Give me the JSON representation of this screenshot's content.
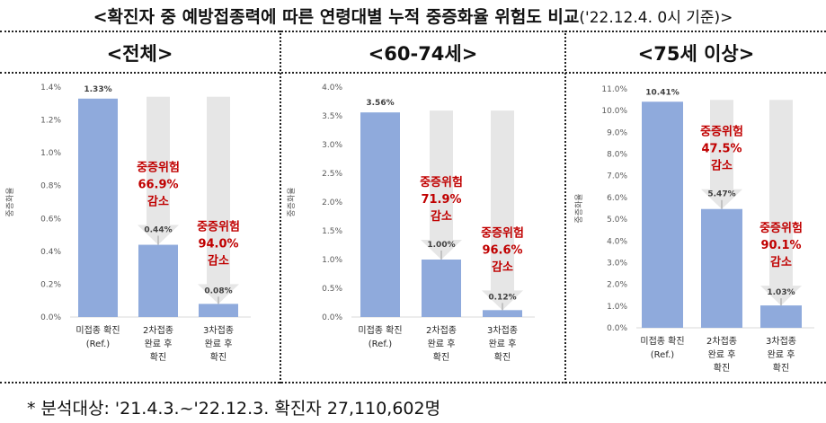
{
  "title": {
    "main": "<확진자 중 예방접종력에 따른 연령대별 누적 중증화율 위험도 비교",
    "sub": "('22.12.4. 0시 기준)>"
  },
  "footnote": "* 분석대상: '21.4.3.~'22.12.3. 확진자 27,110,602명",
  "colors": {
    "bar": "#8faadc",
    "arrow": "#e6e6e6",
    "annotation": "#c00000"
  },
  "chart_data": [
    {
      "type": "bar",
      "title": "<전체>",
      "ylabel": "중증화율",
      "categories": [
        [
          "미접종 확진",
          "(Ref.)"
        ],
        [
          "2차접종",
          "완료 후",
          "확진"
        ],
        [
          "3차접종",
          "완료 후",
          "확진"
        ]
      ],
      "values": [
        1.33,
        0.44,
        0.08
      ],
      "value_labels": [
        "1.33%",
        "0.44%",
        "0.08%"
      ],
      "ylim": [
        0,
        1.4
      ],
      "yticks": [
        0,
        0.2,
        0.4,
        0.6,
        0.8,
        1.0,
        1.2,
        1.4
      ],
      "ytick_labels": [
        "0.0%",
        "0.2%",
        "0.4%",
        "0.6%",
        "0.8%",
        "1.0%",
        "1.2%",
        "1.4%"
      ],
      "annotations": [
        {
          "bar": 1,
          "lines": [
            "중증위험",
            "66.9%",
            "감소"
          ]
        },
        {
          "bar": 2,
          "lines": [
            "중증위험",
            "94.0%",
            "감소"
          ]
        }
      ]
    },
    {
      "type": "bar",
      "title": "<60-74세>",
      "ylabel": "중증화율",
      "categories": [
        [
          "미접종 확진",
          "(Ref.)"
        ],
        [
          "2차접종",
          "완료 후",
          "확진"
        ],
        [
          "3차접종",
          "완료 후",
          "확진"
        ]
      ],
      "values": [
        3.56,
        1.0,
        0.12
      ],
      "value_labels": [
        "3.56%",
        "1.00%",
        "0.12%"
      ],
      "ylim": [
        0,
        4.0
      ],
      "yticks": [
        0,
        0.5,
        1.0,
        1.5,
        2.0,
        2.5,
        3.0,
        3.5,
        4.0
      ],
      "ytick_labels": [
        "0.0%",
        "0.5%",
        "1.0%",
        "1.5%",
        "2.0%",
        "2.5%",
        "3.0%",
        "3.5%",
        "4.0%"
      ],
      "annotations": [
        {
          "bar": 1,
          "lines": [
            "중증위험",
            "71.9%",
            "감소"
          ]
        },
        {
          "bar": 2,
          "lines": [
            "중증위험",
            "96.6%",
            "감소"
          ]
        }
      ]
    },
    {
      "type": "bar",
      "title": "<75세 이상>",
      "ylabel": "중증화율",
      "categories": [
        [
          "미접종 확진",
          "(Ref.)"
        ],
        [
          "2차접종",
          "완료 후",
          "확진"
        ],
        [
          "3차접종",
          "완료 후",
          "확진"
        ]
      ],
      "values": [
        10.41,
        5.47,
        1.03
      ],
      "value_labels": [
        "10.41%",
        "5.47%",
        "1.03%"
      ],
      "ylim": [
        0,
        11.0
      ],
      "yticks": [
        0,
        1,
        2,
        3,
        4,
        5,
        6,
        7,
        8,
        9,
        10,
        11
      ],
      "ytick_labels": [
        "0.0%",
        "1.0%",
        "2.0%",
        "3.0%",
        "4.0%",
        "5.0%",
        "6.0%",
        "7.0%",
        "8.0%",
        "9.0%",
        "10.0%",
        "11.0%"
      ],
      "annotations": [
        {
          "bar": 1,
          "lines": [
            "중증위험",
            "47.5%",
            "감소"
          ]
        },
        {
          "bar": 2,
          "lines": [
            "중증위험",
            "90.1%",
            "감소"
          ]
        }
      ]
    }
  ]
}
